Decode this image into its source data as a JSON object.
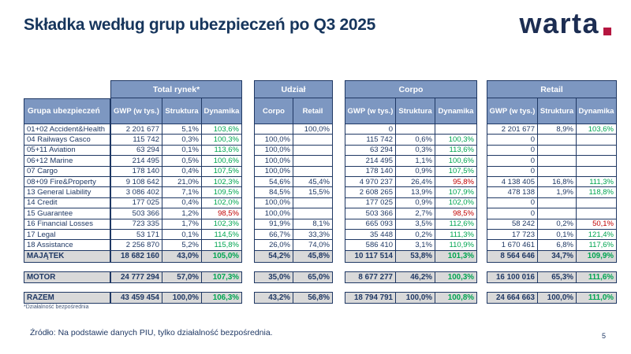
{
  "header": {
    "title": "Składka według grup ubezpieczeń po Q3 2025",
    "logo_text": "warta",
    "logo_dot": "."
  },
  "colors": {
    "title": "#16355c",
    "text": "#1f3864",
    "line": "#1f3864",
    "header_fill": "#7d97c1",
    "positive": "#00a551",
    "negative": "#c00000",
    "total_bg": "#d9d9d9",
    "logo": "#1c2d52",
    "logo_dot": "#b51640"
  },
  "table": {
    "row_header": "Grupa ubezpieczeń",
    "sections": [
      {
        "label": "Total rynek*",
        "columns": [
          "GWP (w tys.)",
          "Struktura",
          "Dynamika"
        ]
      },
      {
        "label": "Udział",
        "columns": [
          "Corpo",
          "Retail"
        ]
      },
      {
        "label": "Corpo",
        "columns": [
          "GWP (w tys.)",
          "Struktura",
          "Dynamika"
        ]
      },
      {
        "label": "Retail",
        "columns": [
          "GWP (w tys.)",
          "Struktura",
          "Dynamika"
        ]
      }
    ],
    "rows": [
      [
        "01+02 Accident&Health",
        "2 201 677",
        "5,1%",
        "103,6%",
        "",
        "100,0%",
        "0",
        "",
        "",
        "2 201 677",
        "8,9%",
        "103,6%"
      ],
      [
        "04 Railways Casco",
        "115 742",
        "0,3%",
        "100,3%",
        "100,0%",
        "",
        "115 742",
        "0,6%",
        "100,3%",
        "0",
        "",
        ""
      ],
      [
        "05+11 Aviation",
        "63 294",
        "0,1%",
        "113,6%",
        "100,0%",
        "",
        "63 294",
        "0,3%",
        "113,6%",
        "0",
        "",
        ""
      ],
      [
        "06+12 Marine",
        "214 495",
        "0,5%",
        "100,6%",
        "100,0%",
        "",
        "214 495",
        "1,1%",
        "100,6%",
        "0",
        "",
        ""
      ],
      [
        "07 Cargo",
        "178 140",
        "0,4%",
        "107,5%",
        "100,0%",
        "",
        "178 140",
        "0,9%",
        "107,5%",
        "0",
        "",
        ""
      ],
      [
        "08+09 Fire&Property",
        "9 108 642",
        "21,0%",
        "102,3%",
        "54,6%",
        "45,4%",
        "4 970 237",
        "26,4%",
        "95,8%",
        "4 138 405",
        "16,8%",
        "111,3%"
      ],
      [
        "13 General Liability",
        "3 086 402",
        "7,1%",
        "109,5%",
        "84,5%",
        "15,5%",
        "2 608 265",
        "13,9%",
        "107,9%",
        "478 138",
        "1,9%",
        "118,8%"
      ],
      [
        "14 Credit",
        "177 025",
        "0,4%",
        "102,0%",
        "100,0%",
        "",
        "177 025",
        "0,9%",
        "102,0%",
        "0",
        "",
        ""
      ],
      [
        "15 Guarantee",
        "503 366",
        "1,2%",
        "98,5%",
        "100,0%",
        "",
        "503 366",
        "2,7%",
        "98,5%",
        "0",
        "",
        ""
      ],
      [
        "16 Financial Losses",
        "723 335",
        "1,7%",
        "102,3%",
        "91,9%",
        "8,1%",
        "665 093",
        "3,5%",
        "112,6%",
        "58 242",
        "0,2%",
        "50,1%"
      ],
      [
        "17 Legal",
        "53 171",
        "0,1%",
        "114,5%",
        "66,7%",
        "33,3%",
        "35 448",
        "0,2%",
        "111,3%",
        "17 723",
        "0,1%",
        "121,4%"
      ],
      [
        "18 Assistance",
        "2 256 870",
        "5,2%",
        "115,8%",
        "26,0%",
        "74,0%",
        "586 410",
        "3,1%",
        "110,9%",
        "1 670 461",
        "6,8%",
        "117,6%"
      ]
    ],
    "majatek": [
      "MAJĄTEK",
      "18 682 160",
      "43,0%",
      "105,0%",
      "54,2%",
      "45,8%",
      "10 117 514",
      "53,8%",
      "101,3%",
      "8 564 646",
      "34,7%",
      "109,9%"
    ],
    "motor": [
      "MOTOR",
      "24 777 294",
      "57,0%",
      "107,3%",
      "35,0%",
      "65,0%",
      "8 677 277",
      "46,2%",
      "100,3%",
      "16 100 016",
      "65,3%",
      "111,6%"
    ],
    "razem": [
      "RAZEM",
      "43 459 454",
      "100,0%",
      "106,3%",
      "43,2%",
      "56,8%",
      "18 794 791",
      "100,0%",
      "100,8%",
      "24 664 663",
      "100,0%",
      "111,0%"
    ]
  },
  "footer": {
    "footnote": "*Działalność bezpośrednia",
    "source": "Źródło: Na podstawie danych PIU, tylko działalność bezpośrednia.",
    "page_number": "5"
  }
}
